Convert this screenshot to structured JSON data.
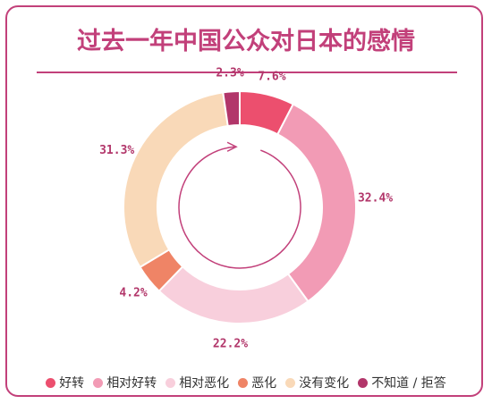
{
  "chart_data": {
    "type": "pie",
    "title": "过去一年中国公众对日本的感情",
    "categories": [
      "好转",
      "相对好转",
      "相对恶化",
      "恶化",
      "没有变化",
      "不知道 / 拒答"
    ],
    "values": [
      7.6,
      32.4,
      22.2,
      4.2,
      31.3,
      2.3
    ],
    "value_labels": [
      "7.6%",
      "32.4%",
      "22.2%",
      "4.2%",
      "31.3%",
      "2.3%"
    ],
    "colors": [
      "#ec4f6e",
      "#f29bb5",
      "#f8cfdc",
      "#ef8466",
      "#f9d9b8",
      "#b2366a"
    ],
    "legend": "bottom"
  }
}
